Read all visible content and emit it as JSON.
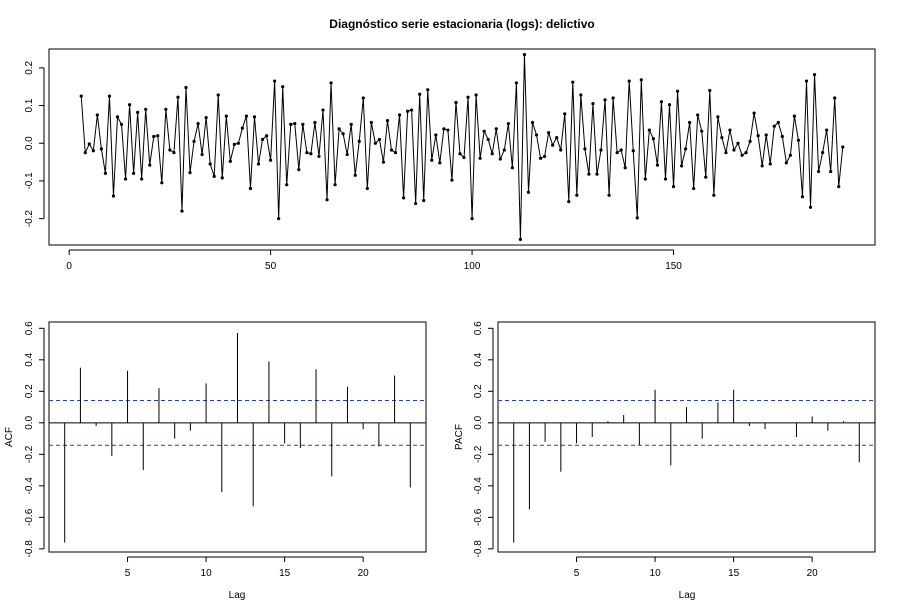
{
  "figure_title": "Diagnóstico serie estacionaria (logs): delictivo",
  "chart_data": [
    {
      "type": "line",
      "title": "Diagnóstico serie estacionaria (logs): delictivo",
      "xlabel": "",
      "ylabel": "",
      "xlim": [
        -5,
        200
      ],
      "ylim": [
        -0.27,
        0.25
      ],
      "xticks": [
        0,
        50,
        100,
        150
      ],
      "yticks": [
        -0.2,
        -0.1,
        0.0,
        0.1,
        0.2
      ],
      "xtick_labels": [
        "0",
        "50",
        "100",
        "150"
      ],
      "ytick_labels": [
        "-0.2",
        "-0.1",
        "0.0",
        "0.1",
        "0.2"
      ],
      "x_start": 3,
      "values": [
        0.125,
        -0.025,
        -0.002,
        -0.02,
        0.075,
        -0.015,
        -0.08,
        0.125,
        -0.14,
        0.07,
        0.05,
        -0.095,
        0.102,
        -0.08,
        0.082,
        -0.095,
        0.09,
        -0.058,
        0.018,
        0.02,
        -0.105,
        0.09,
        -0.018,
        -0.025,
        0.122,
        -0.18,
        0.148,
        -0.078,
        0.005,
        0.052,
        -0.03,
        0.068,
        -0.055,
        -0.088,
        0.128,
        -0.092,
        0.072,
        -0.048,
        -0.003,
        0.0,
        0.04,
        0.072,
        -0.12,
        0.07,
        -0.055,
        0.01,
        0.02,
        -0.045,
        0.165,
        -0.2,
        0.15,
        -0.11,
        0.05,
        0.052,
        -0.07,
        0.05,
        -0.025,
        -0.028,
        0.055,
        -0.035,
        0.088,
        -0.15,
        0.16,
        -0.11,
        0.038,
        0.025,
        -0.03,
        0.05,
        -0.085,
        0.005,
        0.12,
        -0.12,
        0.055,
        0.0,
        0.01,
        -0.05,
        0.06,
        -0.018,
        -0.025,
        0.075,
        -0.145,
        0.085,
        0.088,
        -0.16,
        0.13,
        -0.152,
        0.142,
        -0.045,
        0.022,
        -0.052,
        0.038,
        0.035,
        -0.098,
        0.108,
        -0.028,
        -0.038,
        0.122,
        -0.2,
        0.128,
        -0.04,
        0.032,
        0.01,
        -0.028,
        0.038,
        -0.042,
        -0.018,
        0.052,
        -0.065,
        0.16,
        -0.255,
        0.235,
        -0.13,
        0.055,
        0.022,
        -0.04,
        -0.035,
        0.028,
        -0.005,
        0.015,
        -0.018,
        0.078,
        -0.155,
        0.162,
        -0.138,
        0.128,
        -0.015,
        -0.082,
        0.105,
        -0.082,
        -0.018,
        0.115,
        -0.138,
        0.12,
        -0.025,
        -0.018,
        -0.065,
        0.165,
        -0.02,
        -0.198,
        0.168,
        -0.095,
        0.035,
        0.012,
        -0.058,
        0.11,
        -0.095,
        0.102,
        -0.115,
        0.138,
        -0.06,
        -0.015,
        0.055,
        -0.12,
        0.075,
        0.032,
        -0.09,
        0.14,
        -0.138,
        0.07,
        0.015,
        -0.025,
        0.035,
        -0.018,
        0.0,
        -0.032,
        -0.025,
        0.005,
        0.08,
        0.02,
        -0.06,
        0.022,
        -0.055,
        0.045,
        0.055,
        0.018,
        -0.052,
        -0.032,
        0.072,
        0.008,
        -0.142,
        0.165,
        -0.17,
        0.182,
        -0.075,
        -0.025,
        0.035,
        -0.075,
        0.12,
        -0.115,
        -0.01
      ]
    },
    {
      "type": "bar",
      "subtype": "acf",
      "title": "",
      "xlabel": "Lag",
      "ylabel": "ACF",
      "xlim": [
        0,
        24
      ],
      "ylim": [
        -0.82,
        0.64
      ],
      "xticks": [
        5,
        10,
        15,
        20
      ],
      "yticks": [
        -0.8,
        -0.6,
        -0.4,
        -0.2,
        0.0,
        0.2,
        0.4,
        0.6
      ],
      "xtick_labels": [
        "5",
        "10",
        "15",
        "20"
      ],
      "ytick_labels": [
        "-0.8",
        "-0.6",
        "-0.4",
        "-0.2",
        "0.0",
        "0.2",
        "0.4",
        "0.6"
      ],
      "lags": [
        1,
        2,
        3,
        4,
        5,
        6,
        7,
        8,
        9,
        10,
        11,
        12,
        13,
        14,
        15,
        16,
        17,
        18,
        19,
        20,
        21,
        22,
        23
      ],
      "values": [
        -0.76,
        0.35,
        -0.02,
        -0.21,
        0.33,
        -0.3,
        0.22,
        -0.1,
        -0.05,
        0.25,
        -0.44,
        0.57,
        -0.53,
        0.39,
        -0.13,
        -0.16,
        0.34,
        -0.34,
        0.23,
        -0.04,
        -0.15,
        0.3,
        -0.41
      ],
      "confidence_bound": 0.142
    },
    {
      "type": "bar",
      "subtype": "pacf",
      "title": "",
      "xlabel": "Lag",
      "ylabel": "PACF",
      "xlim": [
        0,
        24
      ],
      "ylim": [
        -0.82,
        0.64
      ],
      "xticks": [
        5,
        10,
        15,
        20
      ],
      "yticks": [
        -0.8,
        -0.6,
        -0.4,
        -0.2,
        0.0,
        0.2,
        0.4,
        0.6
      ],
      "xtick_labels": [
        "5",
        "10",
        "15",
        "20"
      ],
      "ytick_labels": [
        "-0.8",
        "-0.6",
        "-0.4",
        "-0.2",
        "0.0",
        "0.2",
        "0.4",
        "0.6"
      ],
      "lags": [
        1,
        2,
        3,
        4,
        5,
        6,
        7,
        8,
        9,
        10,
        11,
        12,
        13,
        14,
        15,
        16,
        17,
        18,
        19,
        20,
        21,
        22,
        23
      ],
      "values": [
        -0.76,
        -0.55,
        -0.12,
        -0.31,
        -0.13,
        -0.09,
        0.01,
        0.05,
        -0.14,
        0.21,
        -0.27,
        0.1,
        -0.1,
        0.13,
        0.21,
        -0.02,
        -0.04,
        0.0,
        -0.09,
        0.04,
        -0.05,
        0.01,
        -0.25
      ],
      "confidence_bound": 0.142
    }
  ]
}
